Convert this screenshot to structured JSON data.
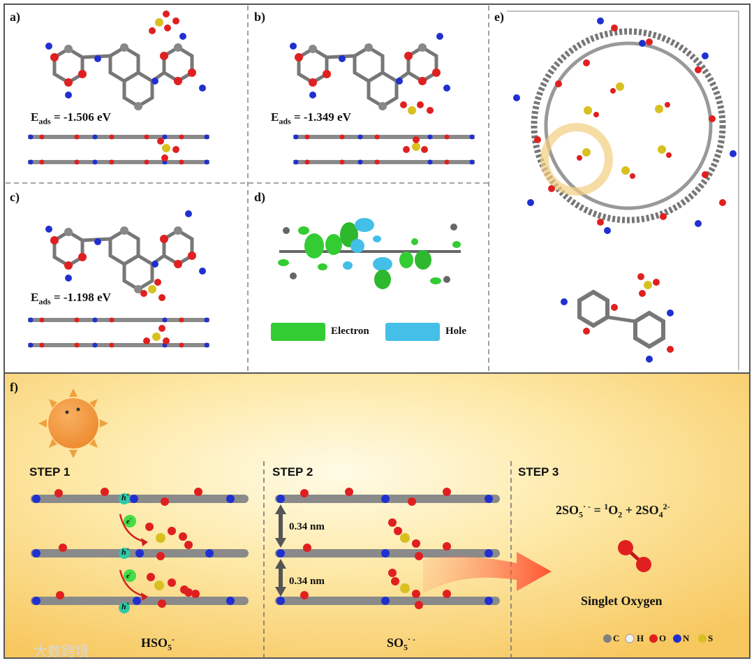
{
  "panels": {
    "a": {
      "label": "a)",
      "eads_prefix": "E",
      "eads_sub": "ads",
      "eads_value": "= -1.506 eV"
    },
    "b": {
      "label": "b)",
      "eads_prefix": "E",
      "eads_sub": "ads",
      "eads_value": "= -1.349 eV"
    },
    "c": {
      "label": "c)",
      "eads_prefix": "E",
      "eads_sub": "ads",
      "eads_value": "= -1.198 eV"
    },
    "d": {
      "label": "d)",
      "legend_electron": "Electron",
      "legend_hole": "Hole"
    },
    "e": {
      "label": "e)"
    },
    "f": {
      "label": "f)",
      "step1": "STEP 1",
      "step2": "STEP 2",
      "step3": "STEP 3",
      "distance_1": "0.34 nm",
      "distance_2": "0.34 nm",
      "hole_symbol": "h",
      "hole_sup": "+",
      "electron_symbol": "e",
      "electron_sup": "-",
      "hso5_main": "HSO",
      "hso5_sub": "5",
      "hso5_sup": "-",
      "so5_main": "SO",
      "so5_sub": "5",
      "so5_sup": "· -",
      "reaction": {
        "lhs_main": "2SO",
        "lhs_sub": "5",
        "lhs_sup": "· -",
        "eq": " = ",
        "o2_sup": "1",
        "o2_main": "O",
        "o2_sub": "2",
        "plus": " + 2SO",
        "rhs_sub": "4",
        "rhs_sup": "2-"
      },
      "singlet_label": "Singlet Oxygen",
      "atom_legend": [
        "C",
        "H",
        "O",
        "N",
        "S"
      ]
    }
  },
  "colors": {
    "carbon": "#808080",
    "hydrogen": "#f2f2f2",
    "oxygen": "#e02020",
    "nitrogen": "#2030d0",
    "sulfur": "#d8c020",
    "electron_green": "#33cc33",
    "hole_blue": "#44bfe8",
    "arrow_red": "#ff5533",
    "sun_orange": "#f0a040"
  },
  "watermark": "大数跨境"
}
